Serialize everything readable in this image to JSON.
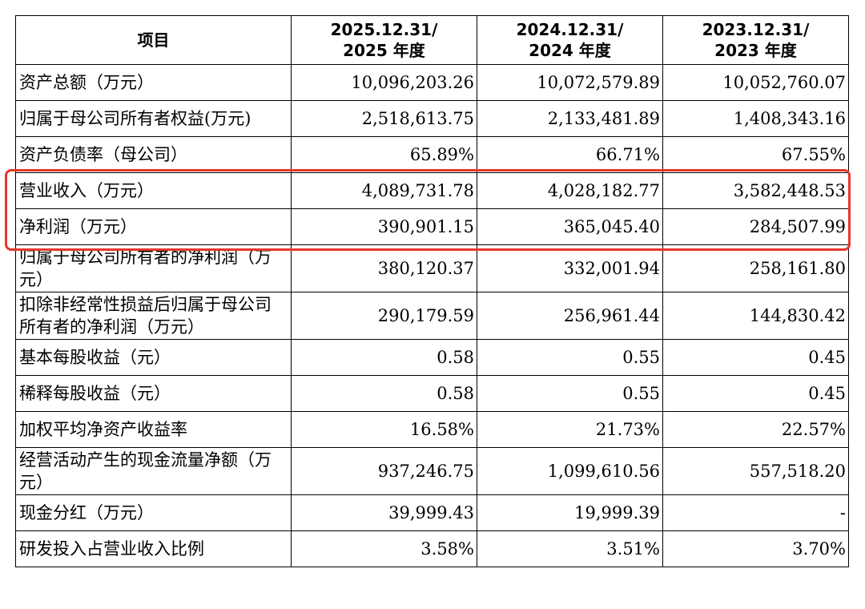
{
  "columns": {
    "item": "项目",
    "c2025": [
      "2025.12.31/",
      "2025 年度"
    ],
    "c2024": [
      "2024.12.31/",
      "2024 年度"
    ],
    "c2023": [
      "2023.12.31/",
      "2023 年度"
    ]
  },
  "rows": [
    {
      "label": "资产总额（万元）",
      "v2025": "10,096,203.26",
      "v2024": "10,072,579.89",
      "v2023": "10,052,760.07"
    },
    {
      "label": "归属于母公司所有者权益(万元)",
      "v2025": "2,518,613.75",
      "v2024": "2,133,481.89",
      "v2023": "1,408,343.16"
    },
    {
      "label": "资产负债率（母公司）",
      "v2025": "65.89%",
      "v2024": "66.71%",
      "v2023": "67.55%"
    },
    {
      "label": "营业收入（万元）",
      "v2025": "4,089,731.78",
      "v2024": "4,028,182.77",
      "v2023": "3,582,448.53"
    },
    {
      "label": "净利润（万元）",
      "v2025": "390,901.15",
      "v2024": "365,045.40",
      "v2023": "284,507.99"
    },
    {
      "label": "归属于母公司所有者的净利润（万元）",
      "v2025": "380,120.37",
      "v2024": "332,001.94",
      "v2023": "258,161.80"
    },
    {
      "label": "扣除非经常性损益后归属于母公司所有者的净利润（万元）",
      "v2025": "290,179.59",
      "v2024": "256,961.44",
      "v2023": "144,830.42"
    },
    {
      "label": "基本每股收益（元）",
      "v2025": "0.58",
      "v2024": "0.55",
      "v2023": "0.45"
    },
    {
      "label": "稀释每股收益（元）",
      "v2025": "0.58",
      "v2024": "0.55",
      "v2023": "0.45"
    },
    {
      "label": "加权平均净资产收益率",
      "v2025": "16.58%",
      "v2024": "21.73%",
      "v2023": "22.57%"
    },
    {
      "label": "经营活动产生的现金流量净额（万元）",
      "v2025": "937,246.75",
      "v2024": "1,099,610.56",
      "v2023": "557,518.20"
    },
    {
      "label": "现金分红（万元）",
      "v2025": "39,999.43",
      "v2024": "19,999.39",
      "v2023": "-"
    },
    {
      "label": "研发投入占营业收入比例",
      "v2025": "3.58%",
      "v2024": "3.51%",
      "v2023": "3.70%"
    }
  ],
  "highlight": {
    "color": "#e8362a",
    "rows": [
      "营业收入（万元）",
      "净利润（万元）"
    ]
  }
}
